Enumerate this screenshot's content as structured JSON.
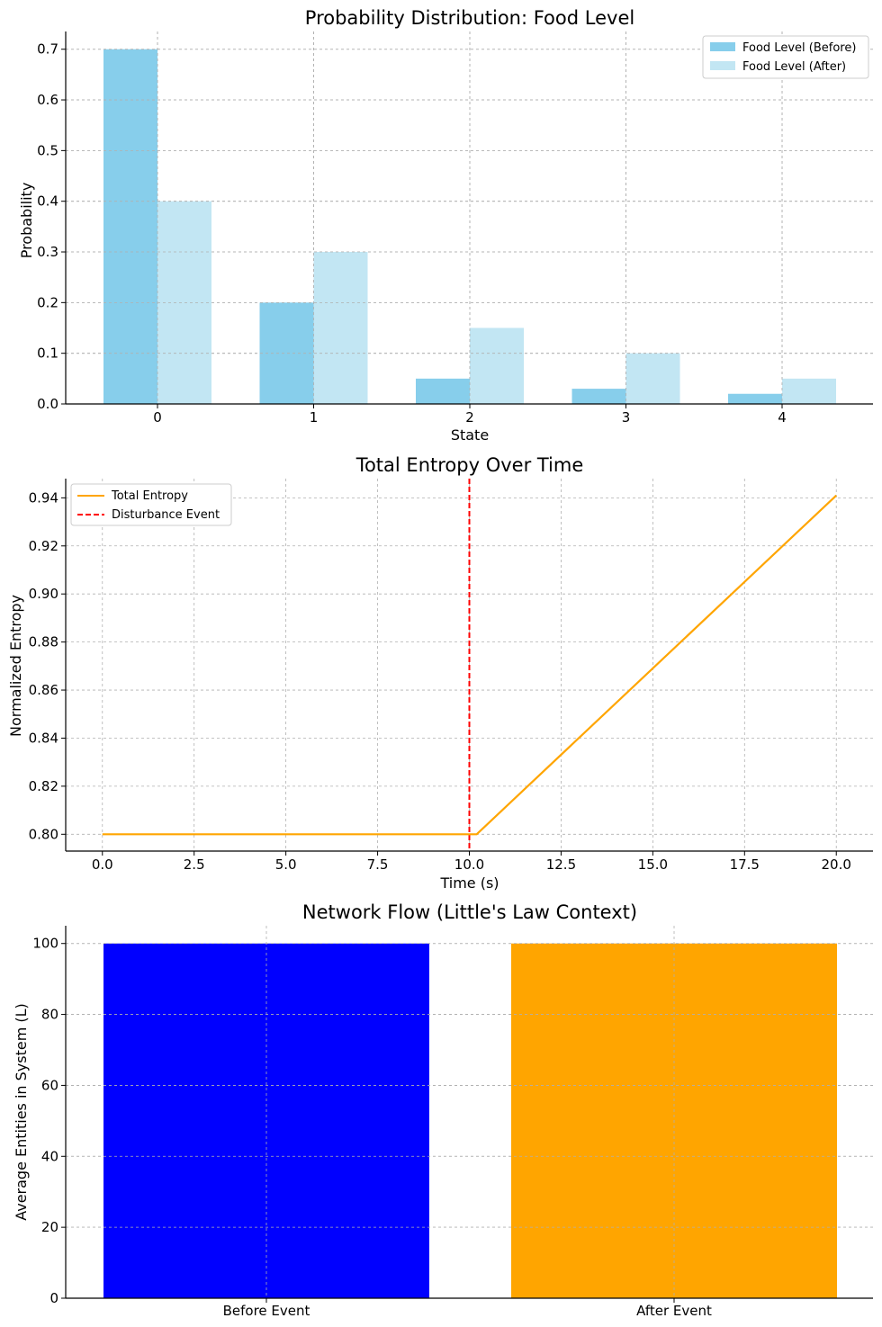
{
  "chart_data": [
    {
      "type": "bar",
      "title": "Probability Distribution: Food Level",
      "xlabel": "State",
      "ylabel": "Probability",
      "categories": [
        "0",
        "1",
        "2",
        "3",
        "4"
      ],
      "series": [
        {
          "name": "Food Level (Before)",
          "values": [
            0.7,
            0.2,
            0.05,
            0.03,
            0.02
          ],
          "color": "#87ceeb"
        },
        {
          "name": "Food Level (After)",
          "values": [
            0.4,
            0.3,
            0.15,
            0.1,
            0.05
          ],
          "color": "#c2e6f3"
        }
      ],
      "ylim": [
        0,
        0.735
      ],
      "yticks": [
        0.0,
        0.1,
        0.2,
        0.3,
        0.4,
        0.5,
        0.6,
        0.7
      ],
      "ytick_labels": [
        "0.0",
        "0.1",
        "0.2",
        "0.3",
        "0.4",
        "0.5",
        "0.6",
        "0.7"
      ],
      "grid": true,
      "legend": "top-right"
    },
    {
      "type": "line",
      "title": "Total Entropy Over Time",
      "xlabel": "Time (s)",
      "ylabel": "Normalized Entropy",
      "series": [
        {
          "name": "Total Entropy",
          "color": "#ffa500",
          "style": "solid",
          "x": [
            0,
            10.2,
            20
          ],
          "y": [
            0.8,
            0.8,
            0.941
          ]
        }
      ],
      "vlines": [
        {
          "name": "Disturbance Event",
          "x": 10,
          "color": "#ff0000",
          "style": "dashed"
        }
      ],
      "xlim": [
        -1,
        21
      ],
      "ylim": [
        0.793,
        0.948
      ],
      "xticks": [
        0,
        2.5,
        5,
        7.5,
        10,
        12.5,
        15,
        17.5,
        20
      ],
      "xtick_labels": [
        "0.0",
        "2.5",
        "5.0",
        "7.5",
        "10.0",
        "12.5",
        "15.0",
        "17.5",
        "20.0"
      ],
      "yticks": [
        0.8,
        0.82,
        0.84,
        0.86,
        0.88,
        0.9,
        0.92,
        0.94
      ],
      "ytick_labels": [
        "0.80",
        "0.82",
        "0.84",
        "0.86",
        "0.88",
        "0.90",
        "0.92",
        "0.94"
      ],
      "grid": true,
      "legend": "top-left"
    },
    {
      "type": "bar",
      "title": "Network Flow (Little's Law Context)",
      "xlabel": "",
      "ylabel": "Average Entities in System (L)",
      "categories": [
        "Before Event",
        "After Event"
      ],
      "values": [
        100,
        100
      ],
      "colors": [
        "#0000ff",
        "#ffa500"
      ],
      "ylim": [
        0,
        105
      ],
      "yticks": [
        0,
        20,
        40,
        60,
        80,
        100
      ],
      "ytick_labels": [
        "0",
        "20",
        "40",
        "60",
        "80",
        "100"
      ],
      "grid": true
    }
  ]
}
